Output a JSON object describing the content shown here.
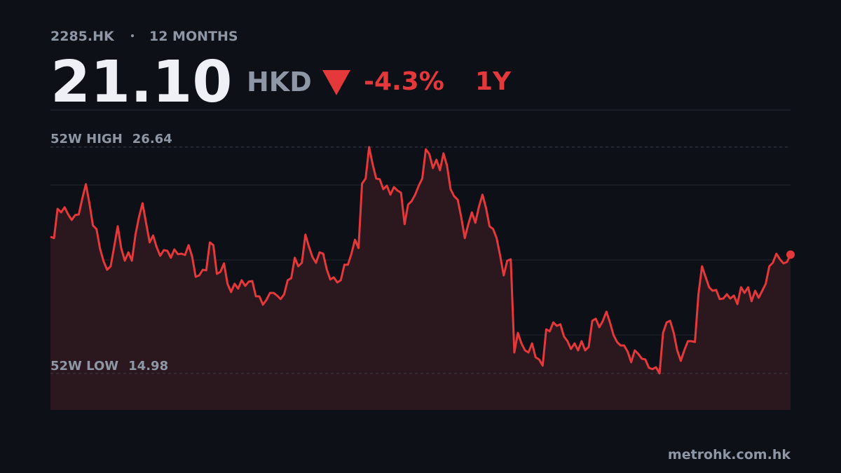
{
  "chart_data": {
    "type": "line",
    "ticker": "2285.HK",
    "period": "12 MONTHS",
    "price": "21.10",
    "currency": "HKD",
    "change": "-4.3%",
    "change_period": "1Y",
    "high_label": "52W HIGH",
    "high": 26.64,
    "low_label": "52W LOW",
    "low": 14.98,
    "source": "metrohk.com.hk",
    "color": "#e5383b",
    "area_color": "#2a181e",
    "ylim": [
      13.1,
      28.55
    ],
    "values": [
      22.02,
      21.95,
      23.46,
      23.28,
      23.54,
      23.17,
      22.89,
      23.14,
      23.17,
      24.0,
      24.73,
      23.75,
      22.6,
      22.42,
      21.41,
      20.76,
      20.32,
      20.5,
      21.51,
      22.56,
      21.41,
      20.79,
      21.22,
      20.79,
      22.13,
      23.03,
      23.75,
      22.74,
      21.73,
      22.09,
      21.48,
      21.04,
      21.33,
      21.3,
      20.94,
      21.37,
      21.12,
      21.15,
      21.08,
      21.59,
      21.01,
      19.96,
      20.03,
      20.32,
      20.29,
      21.73,
      21.59,
      20.11,
      20.21,
      20.65,
      19.6,
      19.17,
      19.6,
      19.35,
      19.78,
      19.49,
      19.71,
      19.74,
      18.95,
      18.95,
      18.52,
      18.77,
      19.13,
      19.13,
      18.99,
      18.81,
      19.06,
      19.78,
      19.89,
      20.94,
      20.5,
      20.68,
      22.13,
      21.51,
      20.97,
      20.68,
      21.22,
      21.15,
      20.36,
      19.82,
      19.93,
      19.67,
      19.78,
      20.58,
      20.58,
      21.15,
      21.87,
      21.44,
      24.76,
      25.02,
      26.64,
      25.74,
      25.02,
      24.98,
      24.47,
      24.65,
      24.19,
      24.58,
      24.4,
      24.29,
      22.67,
      23.68,
      23.86,
      24.19,
      24.65,
      25.02,
      26.53,
      26.28,
      25.56,
      25.99,
      25.45,
      26.32,
      25.67,
      24.47,
      24.11,
      23.93,
      23.03,
      21.95,
      22.67,
      23.28,
      22.74,
      23.57,
      24.19,
      23.5,
      22.56,
      22.42,
      21.95,
      21.04,
      20.03,
      20.79,
      20.86,
      16.06,
      17.07,
      16.53,
      16.17,
      16.06,
      16.53,
      15.81,
      15.7,
      15.38,
      17.25,
      17.15,
      17.61,
      17.43,
      17.51,
      16.89,
      16.64,
      16.24,
      16.53,
      16.17,
      16.64,
      16.17,
      16.35,
      17.69,
      17.8,
      17.36,
      17.69,
      18.16,
      17.61,
      16.96,
      16.6,
      16.42,
      16.42,
      16.1,
      15.56,
      16.17,
      15.99,
      15.74,
      15.7,
      15.27,
      15.2,
      15.3,
      14.98,
      17.07,
      17.61,
      17.69,
      17.07,
      16.17,
      15.63,
      16.17,
      16.64,
      16.64,
      16.6,
      19.06,
      20.5,
      19.96,
      19.42,
      19.24,
      19.28,
      18.81,
      18.84,
      19.06,
      18.84,
      18.99,
      18.55,
      19.42,
      19.13,
      19.42,
      18.7,
      19.24,
      18.88,
      19.24,
      19.6,
      20.5,
      20.68,
      21.15,
      20.86,
      20.65,
      20.72,
      21.1
    ]
  }
}
